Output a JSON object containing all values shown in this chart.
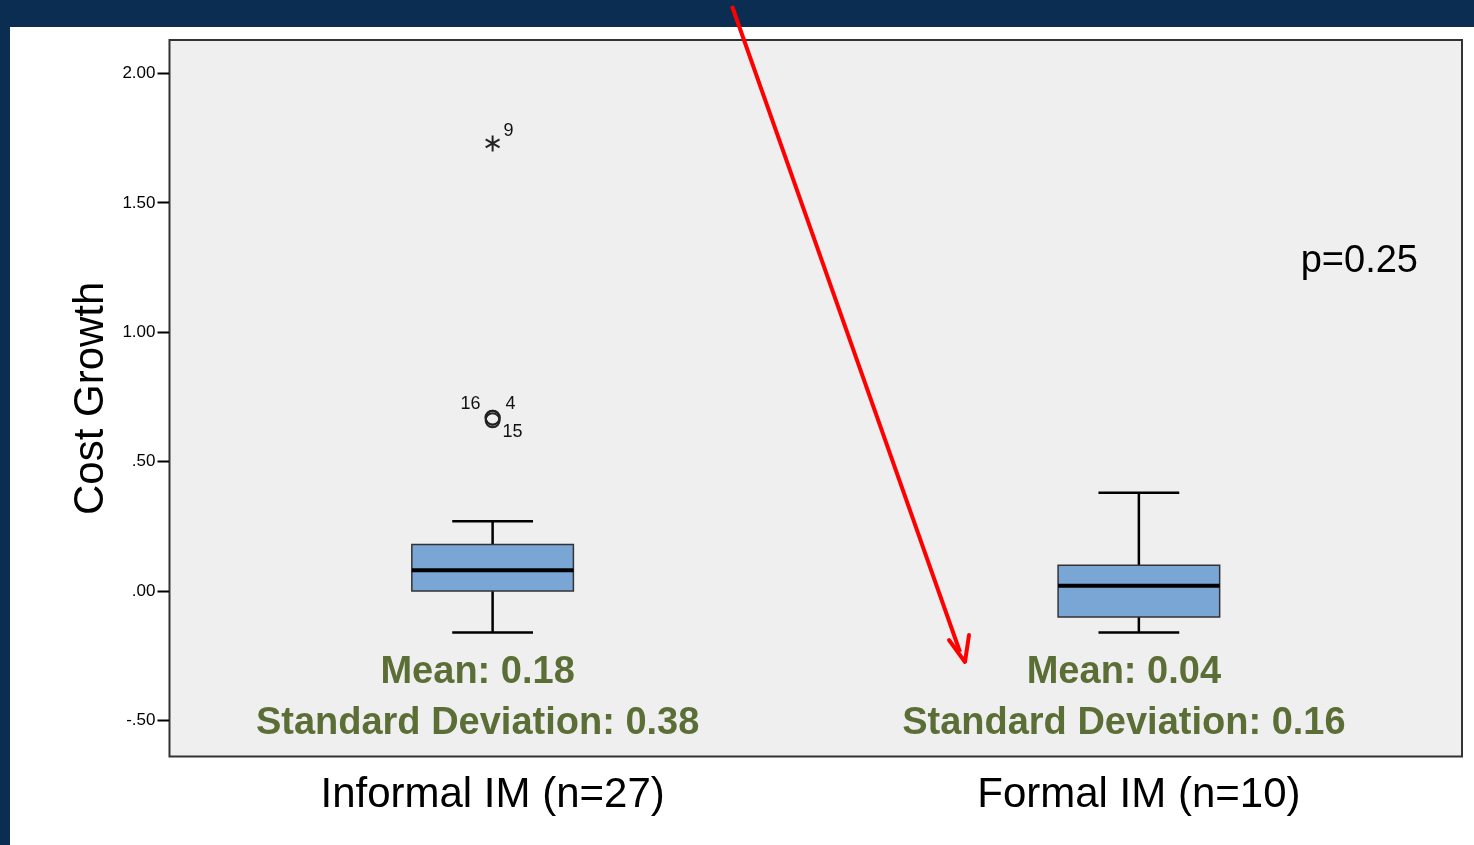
{
  "chart_data": {
    "type": "box",
    "ylabel": "Cost Growth",
    "categories": [
      "Informal IM (n=27)",
      "Formal IM (n=10)"
    ],
    "boxes": [
      {
        "low": -0.16,
        "q1": 0.0,
        "median": 0.08,
        "q3": 0.18,
        "high": 0.27,
        "outliers": [
          1.73,
          0.67,
          0.67,
          0.66
        ]
      },
      {
        "low": -0.16,
        "q1": -0.1,
        "median": 0.02,
        "q3": 0.1,
        "high": 0.38
      }
    ],
    "color": "#7aa6d6",
    "ylim": [
      -0.64,
      2.13
    ],
    "yticks": [
      {
        "value": -0.5,
        "label": "-.50"
      },
      {
        "value": 0,
        "label": ".00"
      },
      {
        "value": 0.5,
        "label": ".50"
      },
      {
        "value": 1,
        "label": "1.00"
      },
      {
        "value": 1.5,
        "label": "1.50"
      },
      {
        "value": 2,
        "label": "2.00"
      }
    ],
    "grid": false,
    "legend": false,
    "annotations": [
      "Mean: 0.18",
      "Standard Deviation: 0.38",
      "Mean: 0.04",
      "Standard Deviation: 0.16",
      "p=0.25",
      "9",
      "16",
      "4",
      "15"
    ]
  }
}
